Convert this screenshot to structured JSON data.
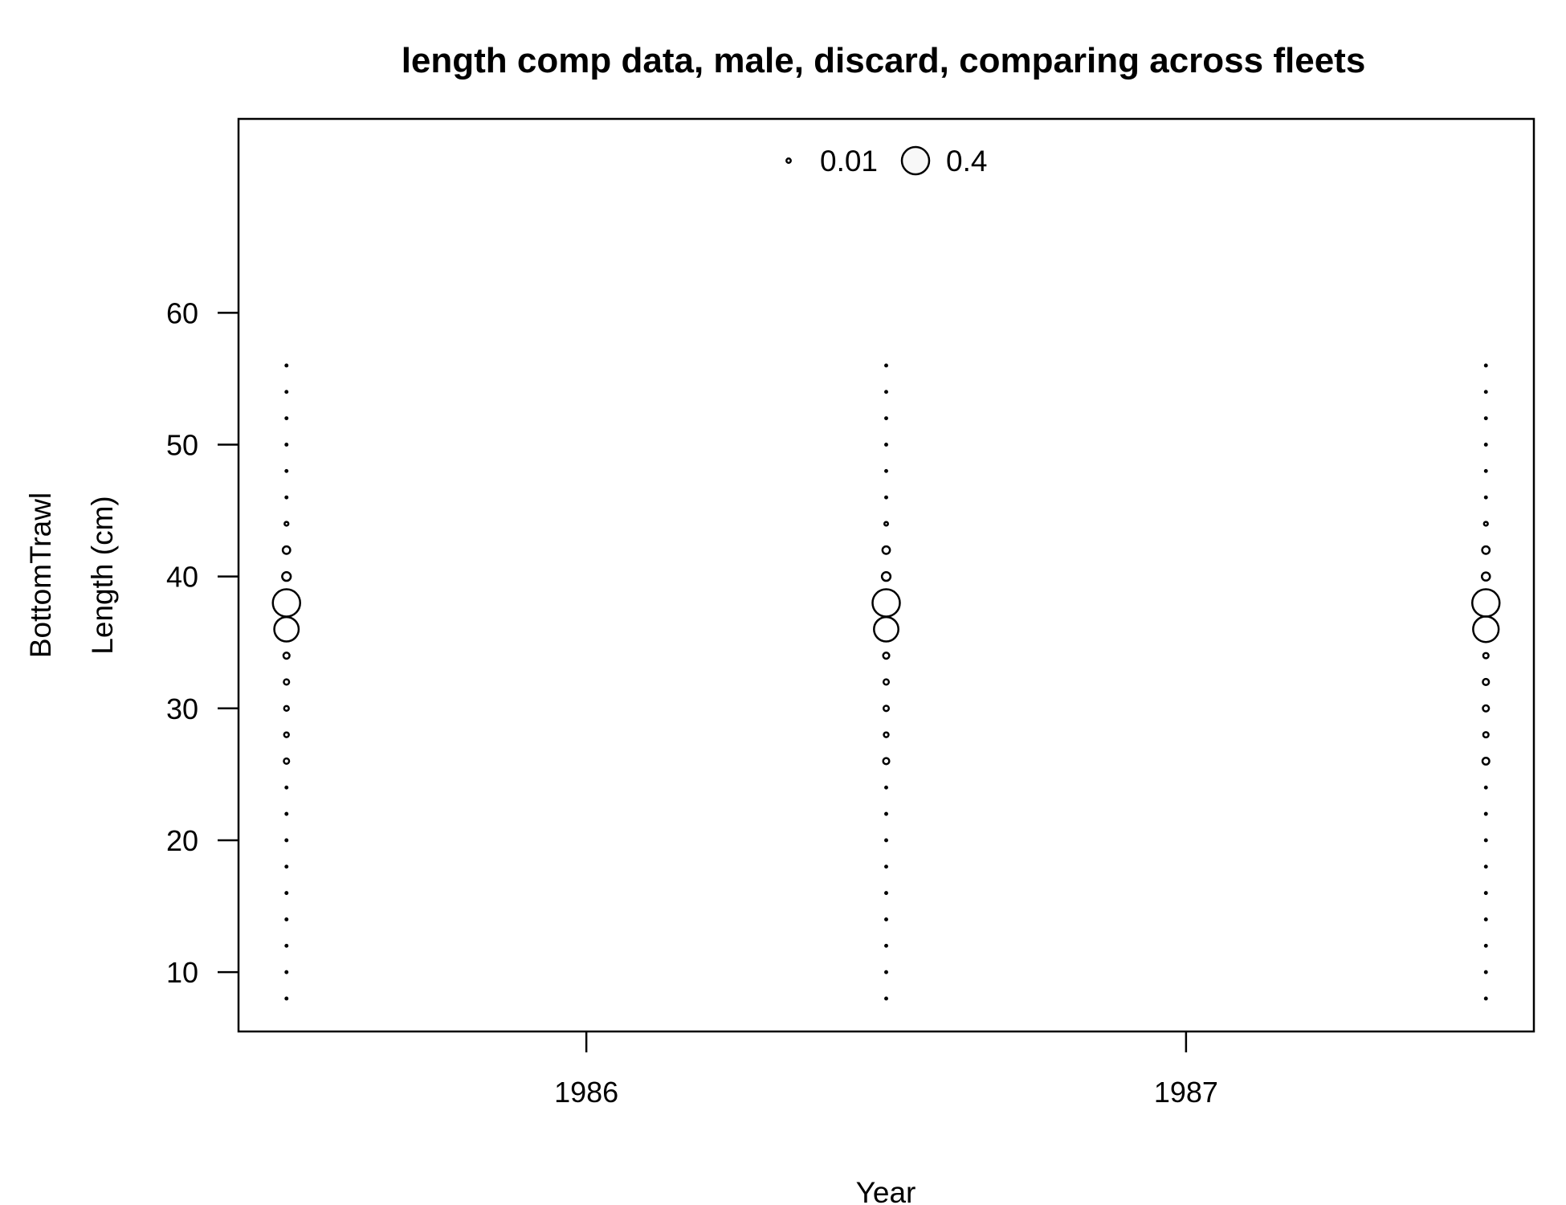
{
  "chart_data": {
    "type": "scatter",
    "subtype": "bubble",
    "title": "length comp data, male, discard, comparing across fleets",
    "xlabel": "Year",
    "ylabel": "Length (cm)",
    "panel_label": "BottomTrawl",
    "x_ticks": [
      1986,
      1987
    ],
    "y_ticks": [
      10,
      20,
      30,
      40,
      50,
      60
    ],
    "xlim": [
      1985.42,
      1987.58
    ],
    "ylim": [
      5.5,
      74.7
    ],
    "legend": {
      "position": "top-center",
      "entries": [
        {
          "label": "0.01",
          "value": 0.01
        },
        {
          "label": "0.4",
          "value": 0.4
        }
      ]
    },
    "size_scale_max": 0.4,
    "lengths": [
      8,
      10,
      12,
      14,
      16,
      18,
      20,
      22,
      24,
      26,
      28,
      30,
      32,
      34,
      36,
      38,
      40,
      42,
      44,
      46,
      48,
      50,
      52,
      54,
      56
    ],
    "series": [
      {
        "x": 1985.5,
        "values": [
          0.0005,
          0.0005,
          0.0005,
          0.0005,
          0.0005,
          0.0005,
          0.0005,
          0.0005,
          0.0005,
          0.015,
          0.012,
          0.012,
          0.015,
          0.02,
          0.32,
          0.4,
          0.04,
          0.03,
          0.008,
          0.0005,
          0.0005,
          0.0005,
          0.0005,
          0.0005,
          0.0005
        ]
      },
      {
        "x": 1986.5,
        "values": [
          0.0005,
          0.0005,
          0.0005,
          0.0005,
          0.0005,
          0.0005,
          0.0005,
          0.0005,
          0.0005,
          0.02,
          0.012,
          0.015,
          0.015,
          0.02,
          0.32,
          0.4,
          0.04,
          0.03,
          0.007,
          0.0005,
          0.0005,
          0.0005,
          0.0005,
          0.0005,
          0.0005
        ]
      },
      {
        "x": 1987.5,
        "values": [
          0.0005,
          0.0005,
          0.0005,
          0.0005,
          0.0005,
          0.0005,
          0.0005,
          0.0005,
          0.0005,
          0.025,
          0.015,
          0.02,
          0.02,
          0.015,
          0.35,
          0.4,
          0.035,
          0.03,
          0.008,
          0.0005,
          0.0005,
          0.0005,
          0.0005,
          0.0005,
          0.0005
        ]
      }
    ]
  }
}
